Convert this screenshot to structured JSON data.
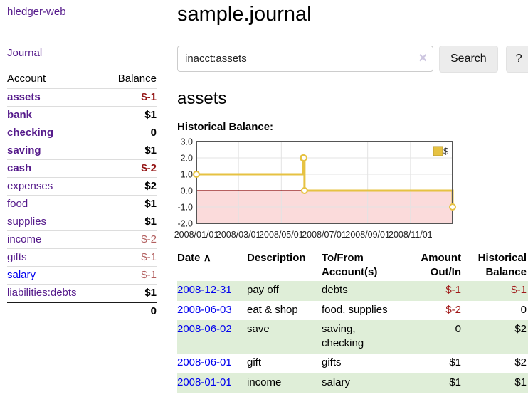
{
  "app": {
    "brand": "hledger-web",
    "nav_journal": "Journal"
  },
  "sidebar": {
    "header": {
      "account": "Account",
      "balance": "Balance"
    },
    "accounts": [
      {
        "name": "assets",
        "depth": 1,
        "bold": true,
        "balance": "$-1",
        "neg": "strong"
      },
      {
        "name": "bank",
        "depth": 2,
        "bold": true,
        "balance": "$1"
      },
      {
        "name": "checking",
        "depth": 3,
        "bold": true,
        "balance": "0"
      },
      {
        "name": "saving",
        "depth": 3,
        "bold": true,
        "balance": "$1"
      },
      {
        "name": "cash",
        "depth": 2,
        "bold": true,
        "balance": "$-2",
        "neg": "strong"
      },
      {
        "name": "expenses",
        "depth": 1,
        "bold": false,
        "balance": "$2"
      },
      {
        "name": "food",
        "depth": 2,
        "bold": false,
        "balance": "$1"
      },
      {
        "name": "supplies",
        "depth": 2,
        "bold": false,
        "balance": "$1"
      },
      {
        "name": "income",
        "depth": 1,
        "bold": false,
        "balance": "$-2",
        "neg": "soft"
      },
      {
        "name": "gifts",
        "depth": 2,
        "bold": false,
        "balance": "$-1",
        "neg": "soft"
      },
      {
        "name": "salary",
        "depth": 2,
        "bold": false,
        "balance": "$-1",
        "neg": "soft",
        "link": "blue"
      },
      {
        "name": "liabilities:debts",
        "depth": 1,
        "bold": false,
        "balance": "$1"
      }
    ],
    "total": "0"
  },
  "main": {
    "title": "sample.journal",
    "search": {
      "value": "inacct:assets",
      "clear_icon": "×",
      "button": "Search",
      "help": "?"
    },
    "account_heading": "assets",
    "chart_label": "Historical Balance:"
  },
  "chart_data": {
    "type": "line",
    "title": "Historical Balance",
    "step": true,
    "series": [
      {
        "name": "$",
        "color": "#e6c242",
        "points": [
          {
            "date": "2008-01-01",
            "value": 1
          },
          {
            "date": "2008-06-01",
            "value": 2
          },
          {
            "date": "2008-06-02",
            "value": 2
          },
          {
            "date": "2008-06-03",
            "value": 0
          },
          {
            "date": "2008-12-31",
            "value": -1
          }
        ]
      }
    ],
    "x_domain": [
      "2008-01-01",
      "2008-12-31"
    ],
    "ylim": [
      -2,
      3
    ],
    "yticks": [
      3.0,
      2.0,
      1.0,
      0.0,
      -1.0,
      -2.0
    ],
    "xticks": [
      "2008/01/01",
      "2008/03/01",
      "2008/05/01",
      "2008/07/01",
      "2008/09/01",
      "2008/11/01"
    ],
    "grid": true,
    "legend_position": "top-right",
    "legend": [
      {
        "label": "$",
        "color": "#e6c242"
      }
    ],
    "colors": {
      "border": "#555555",
      "gridline": "#e3e3e3",
      "negative_fill": "#fbdbdb",
      "zero_line": "#8b0000",
      "marker_fill": "#ffffff",
      "tick_text": "#222222"
    }
  },
  "register": {
    "columns": {
      "date": "Date",
      "sort_icon": "∧",
      "description": "Description",
      "accounts": "To/From Account(s)",
      "amount": "Amount Out/In",
      "balance": "Historical Balance"
    },
    "rows": [
      {
        "date": "2008-12-31",
        "description": "pay off",
        "accounts": "debts",
        "amount": "$-1",
        "amount_neg": true,
        "balance": "$-1",
        "balance_neg": true
      },
      {
        "date": "2008-06-03",
        "description": "eat & shop",
        "accounts": "food, supplies",
        "amount": "$-2",
        "amount_neg": true,
        "balance": "0",
        "balance_neg": false
      },
      {
        "date": "2008-06-02",
        "description": "save",
        "accounts": "saving, checking",
        "amount": "0",
        "amount_neg": false,
        "balance": "$2",
        "balance_neg": false
      },
      {
        "date": "2008-06-01",
        "description": "gift",
        "accounts": "gifts",
        "amount": "$1",
        "amount_neg": false,
        "balance": "$2",
        "balance_neg": false
      },
      {
        "date": "2008-01-01",
        "description": "income",
        "accounts": "salary",
        "amount": "$1",
        "amount_neg": false,
        "balance": "$1",
        "balance_neg": false
      }
    ]
  }
}
